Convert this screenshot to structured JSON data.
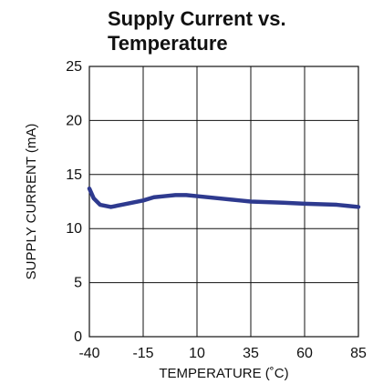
{
  "chart_data": {
    "type": "line",
    "title": [
      "Supply Current vs.",
      "Temperature"
    ],
    "xlabel": "TEMPERATURE (˚C)",
    "ylabel": "SUPPLY CURRENT (mA)",
    "xlim": [
      -40,
      85
    ],
    "ylim": [
      0,
      25
    ],
    "x_ticks": [
      "-40",
      "-15",
      "10",
      "35",
      "60",
      "85"
    ],
    "x_tick_values": [
      -40,
      -15,
      10,
      35,
      60,
      85
    ],
    "y_ticks": [
      "0",
      "5",
      "10",
      "15",
      "20",
      "25"
    ],
    "y_tick_values": [
      0,
      5,
      10,
      15,
      20,
      25
    ],
    "grid": true,
    "series": [
      {
        "color": "#2e3a8f",
        "x": [
          -40,
          -38,
          -35,
          -30,
          -25,
          -15,
          -10,
          -5,
          0,
          5,
          10,
          20,
          30,
          35,
          50,
          60,
          75,
          80,
          85
        ],
        "y": [
          13.7,
          12.8,
          12.2,
          12.0,
          12.2,
          12.6,
          12.9,
          13.0,
          13.1,
          13.1,
          13.0,
          12.8,
          12.6,
          12.5,
          12.4,
          12.3,
          12.2,
          12.1,
          12.0
        ]
      }
    ]
  }
}
